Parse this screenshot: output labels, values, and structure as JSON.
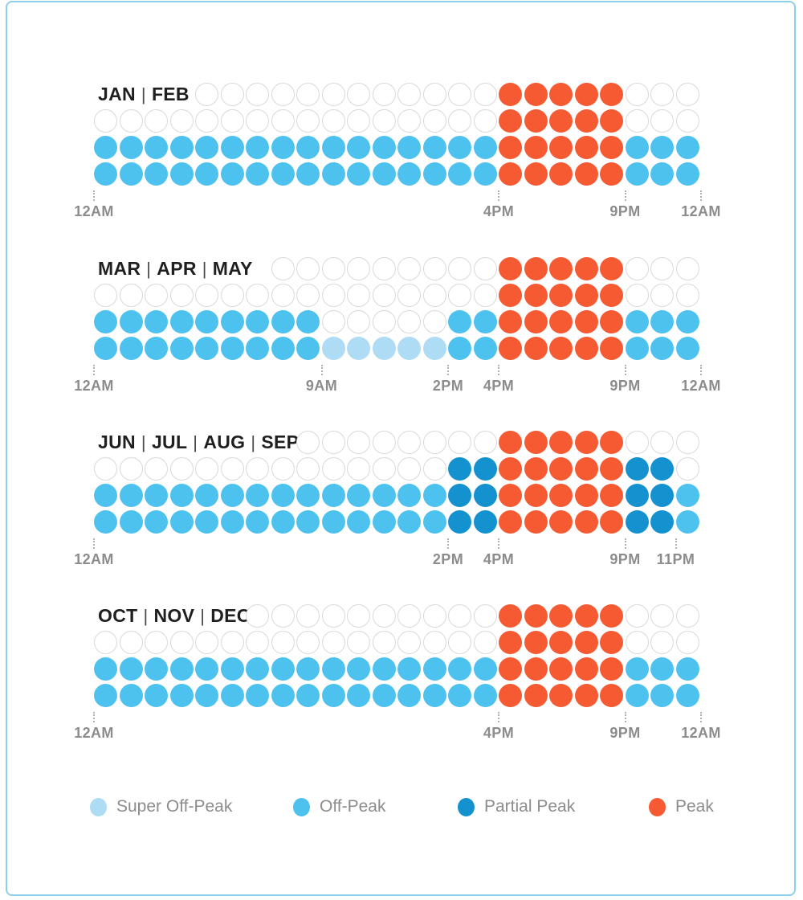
{
  "colors": {
    "frame_border": "#8DD0EC",
    "outline_circle": "#D9D9D9",
    "title_text": "#1F1F1F",
    "axis_text": "#8C8C8C",
    "tick": "#B0B0B0",
    "super_off_peak": "#AEDCF5",
    "off_peak": "#4DC2EE",
    "partial_peak": "#1492D0",
    "peak": "#F65A33"
  },
  "chart_data": {
    "type": "heatmap",
    "unit": "hour-of-day",
    "columns": 24,
    "cell_codes": {
      ".": "hidden-under-title",
      "W": "none",
      "S": "super-off-peak",
      "O": "off-peak",
      "P": "partial-peak",
      "K": "peak"
    },
    "sections": [
      {
        "id": "jan-feb",
        "title_parts": [
          "JAN",
          "FEB"
        ],
        "rows": [
          "....WWWWWWWWWWWWKKKKKWWW",
          "WWWWWWWWWWWWWWWWKKKKKWWW",
          "OOOOOOOOOOOOOOOOKKKKKOOO",
          "OOOOOOOOOOOOOOOOKKKKKOOO"
        ],
        "ticks": [
          {
            "pos": 0,
            "label": "12AM"
          },
          {
            "pos": 16,
            "label": "4PM"
          },
          {
            "pos": 21,
            "label": "9PM"
          },
          {
            "pos": 24,
            "label": "12AM"
          }
        ]
      },
      {
        "id": "mar-apr-may",
        "title_parts": [
          "MAR",
          "APR",
          "MAY"
        ],
        "rows": [
          ".......WWWWWWWWWKKKKKWWW",
          "WWWWWWWWWWWWWWWWKKKKKWWW",
          "OOOOOOOOOWWWWWOOKKKKKOOO",
          "OOOOOOOOOSSSSSOOKKKKKOOO"
        ],
        "ticks": [
          {
            "pos": 0,
            "label": "12AM"
          },
          {
            "pos": 9,
            "label": "9AM"
          },
          {
            "pos": 14,
            "label": "2PM"
          },
          {
            "pos": 16,
            "label": "4PM"
          },
          {
            "pos": 21,
            "label": "9PM"
          },
          {
            "pos": 24,
            "label": "12AM"
          }
        ]
      },
      {
        "id": "jun-jul-aug-sep",
        "title_parts": [
          "JUN",
          "JUL",
          "AUG",
          "SEP"
        ],
        "rows": [
          "........WWWWWWWWKKKKKWWW",
          "WWWWWWWWWWWWWWPPKKKKKPPW",
          "OOOOOOOOOOOOOOPPKKKKKPPO",
          "OOOOOOOOOOOOOOPPKKKKKPPO"
        ],
        "ticks": [
          {
            "pos": 0,
            "label": "12AM"
          },
          {
            "pos": 14,
            "label": "2PM"
          },
          {
            "pos": 16,
            "label": "4PM"
          },
          {
            "pos": 21,
            "label": "9PM"
          },
          {
            "pos": 23,
            "label": "11PM"
          }
        ]
      },
      {
        "id": "oct-nov-dec",
        "title_parts": [
          "OCT",
          "NOV",
          "DEC"
        ],
        "rows": [
          "......WWWWWWWWWWKKKKKWWW",
          "WWWWWWWWWWWWWWWWKKKKKWWW",
          "OOOOOOOOOOOOOOOOKKKKKOOO",
          "OOOOOOOOOOOOOOOOKKKKKOOO"
        ],
        "ticks": [
          {
            "pos": 0,
            "label": "12AM"
          },
          {
            "pos": 16,
            "label": "4PM"
          },
          {
            "pos": 21,
            "label": "9PM"
          },
          {
            "pos": 24,
            "label": "12AM"
          }
        ]
      }
    ]
  },
  "legend": {
    "items": [
      {
        "id": "super-off-peak",
        "label": "Super Off-Peak",
        "color": "#AEDCF5"
      },
      {
        "id": "off-peak",
        "label": "Off-Peak",
        "color": "#4DC2EE"
      },
      {
        "id": "partial-peak",
        "label": "Partial Peak",
        "color": "#1492D0"
      },
      {
        "id": "peak",
        "label": "Peak",
        "color": "#F65A33"
      }
    ]
  }
}
